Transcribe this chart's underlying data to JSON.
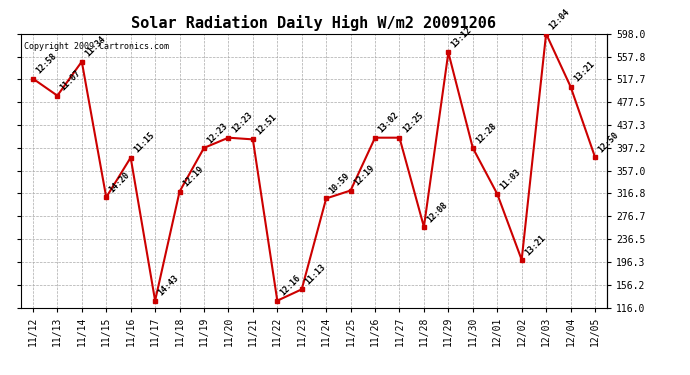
{
  "title": "Solar Radiation Daily High W/m2 20091206",
  "copyright": "Copyright 2009 Cartronics.com",
  "dates": [
    "11/12",
    "11/13",
    "11/14",
    "11/15",
    "11/16",
    "11/17",
    "11/18",
    "11/19",
    "11/20",
    "11/21",
    "11/22",
    "11/23",
    "11/24",
    "11/25",
    "11/26",
    "11/27",
    "11/28",
    "11/29",
    "11/30",
    "12/01",
    "12/02",
    "12/03",
    "12/04",
    "12/05"
  ],
  "values": [
    519,
    489,
    549,
    310,
    380,
    128,
    320,
    397,
    415,
    412,
    128,
    148,
    308,
    322,
    415,
    415,
    258,
    565,
    397,
    316,
    200,
    598,
    505,
    381
  ],
  "labels": [
    "12:58",
    "11:07",
    "11:34",
    "14:20",
    "11:15",
    "14:43",
    "12:19",
    "12:23",
    "12:23",
    "12:51",
    "12:16",
    "11:13",
    "10:59",
    "12:19",
    "13:02",
    "12:25",
    "12:08",
    "13:12",
    "12:28",
    "11:03",
    "13:21",
    "12:04",
    "13:21",
    "12:50"
  ],
  "line_color": "#cc0000",
  "bg_color": "#ffffff",
  "grid_color": "#aaaaaa",
  "ylim_min": 116.0,
  "ylim_max": 598.0,
  "yticks": [
    116.0,
    156.2,
    196.3,
    236.5,
    276.7,
    316.8,
    357.0,
    397.2,
    437.3,
    477.5,
    517.7,
    557.8,
    598.0
  ],
  "ytick_labels": [
    "116.0",
    "156.2",
    "196.3",
    "236.5",
    "276.7",
    "316.8",
    "357.0",
    "397.2",
    "437.3",
    "477.5",
    "517.7",
    "557.8",
    "598.0"
  ],
  "title_fontsize": 11,
  "label_fontsize": 6,
  "tick_fontsize": 7,
  "copyright_fontsize": 6
}
